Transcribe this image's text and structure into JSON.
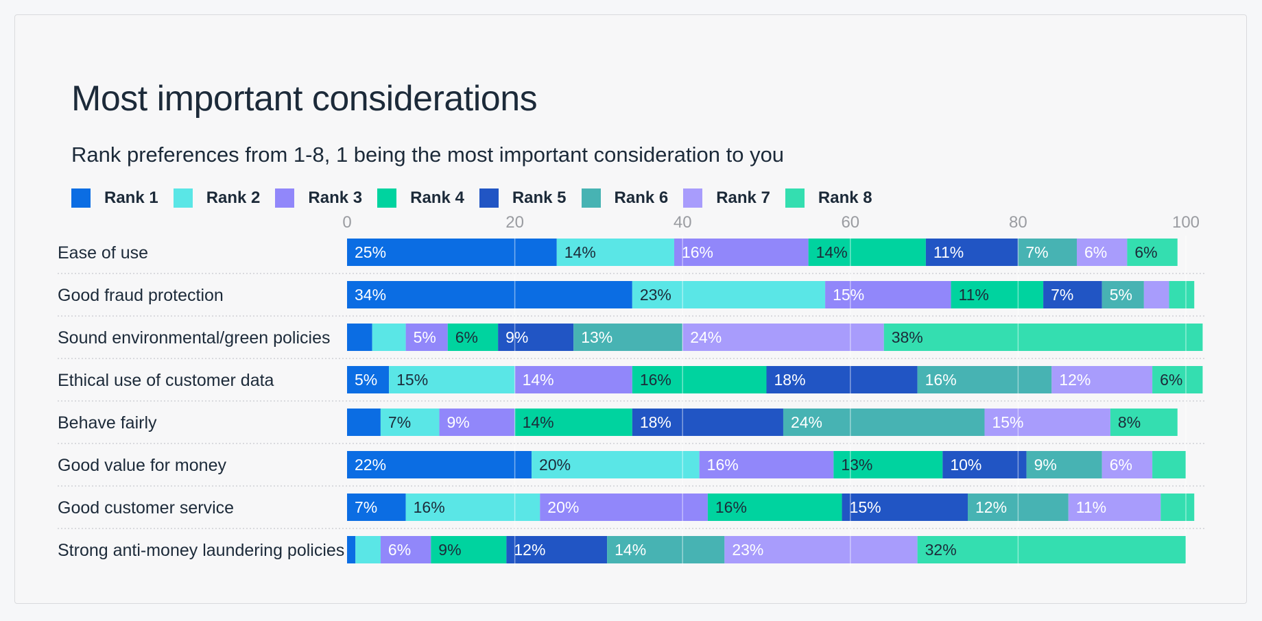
{
  "title": "Most important considerations",
  "subtitle": "Rank preferences from 1-8, 1 being the most important consideration to you",
  "chart_data": {
    "type": "bar",
    "orientation": "horizontal",
    "stacked": true,
    "title": "Most important considerations",
    "subtitle": "Rank preferences from 1-8, 1 being the most important consideration to you",
    "xlabel": "",
    "ylabel": "",
    "xlim": [
      0,
      100
    ],
    "xticks": [
      0,
      20,
      40,
      60,
      80,
      100
    ],
    "grid": true,
    "legend_position": "top-left",
    "categories": [
      "Ease of use",
      "Good fraud protection",
      "Sound environmental/green policies",
      "Ethical use of customer data",
      "Behave fairly",
      "Good value for money",
      "Good customer service",
      "Strong anti-money laundering policies"
    ],
    "series": [
      {
        "name": "Rank 1",
        "color": "#0b6de3",
        "label_color": "#ffffff",
        "values": [
          25,
          34,
          3,
          5,
          4,
          22,
          7,
          1
        ],
        "labels": [
          "25%",
          "34%",
          "",
          "5%",
          "",
          "22%",
          "7%",
          ""
        ]
      },
      {
        "name": "Rank 2",
        "color": "#5ae6e6",
        "label_color": "#1c2a39",
        "values": [
          14,
          23,
          4,
          15,
          7,
          20,
          16,
          3
        ],
        "labels": [
          "14%",
          "23%",
          "",
          "15%",
          "7%",
          "20%",
          "16%",
          ""
        ]
      },
      {
        "name": "Rank 3",
        "color": "#9187fa",
        "label_color": "#ffffff",
        "values": [
          16,
          15,
          5,
          14,
          9,
          16,
          20,
          6
        ],
        "labels": [
          "16%",
          "15%",
          "5%",
          "14%",
          "9%",
          "16%",
          "20%",
          "6%"
        ]
      },
      {
        "name": "Rank 4",
        "color": "#00d39f",
        "label_color": "#1c2a39",
        "values": [
          14,
          11,
          6,
          16,
          14,
          13,
          16,
          9
        ],
        "labels": [
          "14%",
          "11%",
          "6%",
          "16%",
          "14%",
          "13%",
          "16%",
          "9%"
        ]
      },
      {
        "name": "Rank 5",
        "color": "#2155c4",
        "label_color": "#ffffff",
        "values": [
          11,
          7,
          9,
          18,
          18,
          10,
          15,
          12
        ],
        "labels": [
          "11%",
          "7%",
          "9%",
          "18%",
          "18%",
          "10%",
          "15%",
          "12%"
        ]
      },
      {
        "name": "Rank 6",
        "color": "#47b3b3",
        "label_color": "#ffffff",
        "values": [
          7,
          5,
          13,
          16,
          24,
          9,
          12,
          14
        ],
        "labels": [
          "7%",
          "5%",
          "13%",
          "16%",
          "24%",
          "9%",
          "12%",
          "14%"
        ]
      },
      {
        "name": "Rank 7",
        "color": "#a89cfc",
        "label_color": "#ffffff",
        "values": [
          6,
          3,
          24,
          12,
          15,
          6,
          11,
          23
        ],
        "labels": [
          "6%",
          "",
          "24%",
          "12%",
          "15%",
          "6%",
          "11%",
          "23%"
        ]
      },
      {
        "name": "Rank 8",
        "color": "#34deb0",
        "label_color": "#1c2a39",
        "values": [
          6,
          3,
          38,
          6,
          8,
          4,
          4,
          32
        ],
        "labels": [
          "6%",
          "",
          "38%",
          "6%",
          "8%",
          "",
          "",
          "32%"
        ]
      }
    ]
  }
}
